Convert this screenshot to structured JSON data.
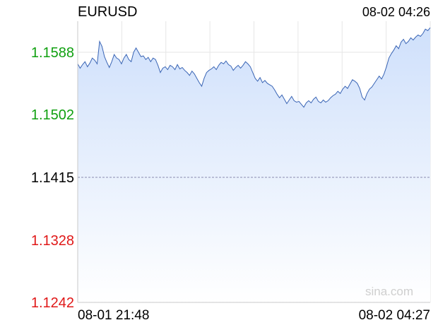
{
  "chart_data": {
    "type": "area",
    "title": "EURUSD",
    "timestamp": "08-02 04:26",
    "watermark": "sina.com",
    "ylim": [
      1.1242,
      1.1631
    ],
    "prev_close": 1.1415,
    "y_ticks": [
      {
        "label": "1.1588",
        "value": 1.1588,
        "color": "#10a010"
      },
      {
        "label": "1.1502",
        "value": 1.1502,
        "color": "#10a010"
      },
      {
        "label": "1.1415",
        "value": 1.1415,
        "color": "#000000"
      },
      {
        "label": "1.1328",
        "value": 1.1328,
        "color": "#e01818"
      },
      {
        "label": "1.1242",
        "value": 1.1242,
        "color": "#e01818"
      }
    ],
    "x_ticks": [
      {
        "label": "08-01 21:48",
        "position": "start"
      },
      {
        "label": "08-02 04:27",
        "position": "end"
      }
    ],
    "grid": true,
    "line_color": "#3a65b5",
    "fill_top_color": "#cfe0fb",
    "fill_bottom_color": "#ffffff",
    "series": [
      {
        "values": [
          1.1572,
          1.1566,
          1.1571,
          1.1575,
          1.1568,
          1.1573,
          1.158,
          1.1577,
          1.1572,
          1.1603,
          1.1596,
          1.1582,
          1.1574,
          1.1567,
          1.1575,
          1.1585,
          1.158,
          1.1578,
          1.1572,
          1.158,
          1.1585,
          1.1578,
          1.1575,
          1.1588,
          1.1594,
          1.1588,
          1.1582,
          1.1583,
          1.1578,
          1.1581,
          1.1575,
          1.158,
          1.1578,
          1.157,
          1.156,
          1.1566,
          1.1568,
          1.1564,
          1.157,
          1.1568,
          1.1564,
          1.1571,
          1.1565,
          1.1567,
          1.1563,
          1.156,
          1.1556,
          1.1562,
          1.1558,
          1.1552,
          1.1546,
          1.1541,
          1.1552,
          1.156,
          1.1563,
          1.1565,
          1.1568,
          1.1564,
          1.157,
          1.1574,
          1.1572,
          1.1576,
          1.1571,
          1.1569,
          1.1563,
          1.1567,
          1.157,
          1.1566,
          1.157,
          1.1575,
          1.1572,
          1.1568,
          1.156,
          1.1552,
          1.1548,
          1.1553,
          1.1546,
          1.1549,
          1.1545,
          1.1543,
          1.1541,
          1.1536,
          1.153,
          1.1525,
          1.1529,
          1.1523,
          1.1517,
          1.1522,
          1.1527,
          1.1521,
          1.1519,
          1.152,
          1.1516,
          1.1512,
          1.1518,
          1.1521,
          1.1518,
          1.1523,
          1.1526,
          1.152,
          1.1518,
          1.1522,
          1.1519,
          1.1521,
          1.1525,
          1.1528,
          1.153,
          1.1534,
          1.1531,
          1.1537,
          1.1541,
          1.1538,
          1.1544,
          1.155,
          1.1548,
          1.1545,
          1.1538,
          1.1526,
          1.1522,
          1.1531,
          1.1537,
          1.154,
          1.1545,
          1.155,
          1.1555,
          1.1551,
          1.1558,
          1.1568,
          1.158,
          1.1586,
          1.1591,
          1.1597,
          1.1593,
          1.1602,
          1.1606,
          1.16,
          1.1603,
          1.1608,
          1.1605,
          1.1609,
          1.1612,
          1.161,
          1.1614,
          1.162,
          1.1618,
          1.1622
        ]
      }
    ]
  }
}
